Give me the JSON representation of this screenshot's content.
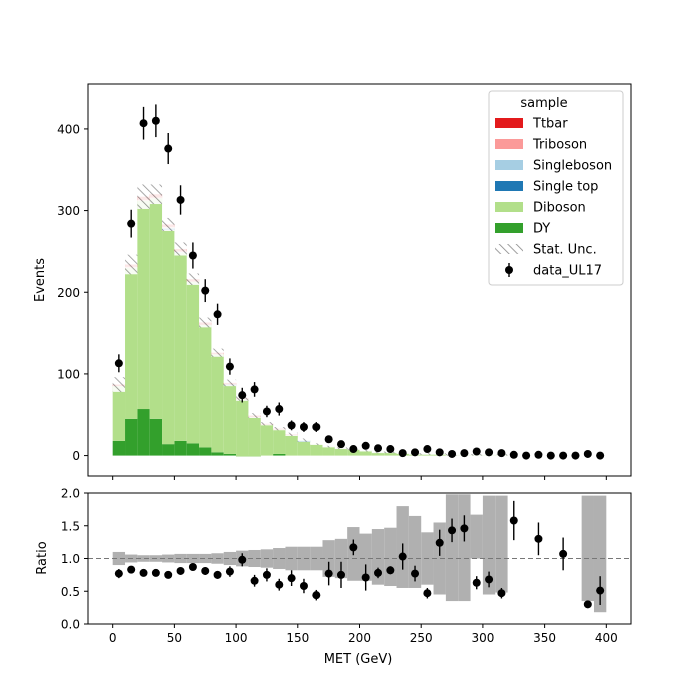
{
  "chart_data": [
    {
      "type": "bar",
      "subtype": "stacked-histogram",
      "ylabel": "Events",
      "xlim": [
        -20,
        420
      ],
      "ylim": [
        -25,
        455
      ],
      "yticks": [
        0,
        100,
        200,
        300,
        400
      ],
      "bin_edges": [
        0,
        10,
        20,
        30,
        40,
        50,
        60,
        70,
        80,
        90,
        100,
        110,
        120,
        130,
        140,
        150,
        160,
        170,
        180,
        190,
        200,
        210,
        220,
        230,
        240,
        250,
        260,
        270,
        280,
        290,
        300,
        310,
        320,
        330,
        340,
        350,
        360,
        370,
        380,
        390,
        400
      ],
      "series": [
        {
          "name": "DY",
          "color": "#33a02c",
          "values": [
            18,
            45,
            57,
            45,
            14,
            18,
            15,
            10,
            4,
            2,
            -1,
            -1,
            0,
            2,
            0,
            0,
            0,
            0,
            0,
            0,
            0,
            0,
            0,
            0,
            0,
            0,
            0,
            0,
            0,
            0,
            0,
            0,
            0,
            0,
            0,
            0,
            0,
            0,
            0,
            0
          ]
        },
        {
          "name": "Diboson",
          "color": "#b2df8a",
          "values": [
            67,
            185,
            255,
            270,
            262,
            230,
            198,
            150,
            120,
            84,
            70,
            48,
            38,
            30,
            25,
            17,
            14,
            11,
            9,
            8,
            6,
            4,
            4,
            3,
            2,
            2,
            2,
            1,
            1,
            1,
            1,
            1,
            0,
            0,
            0,
            0,
            0,
            0,
            0,
            0
          ]
        },
        {
          "name": "Single top",
          "color": "#1f78b4",
          "values": [
            0,
            0,
            0,
            0,
            2,
            0,
            0,
            0,
            0,
            1,
            0,
            0,
            0,
            0,
            0,
            1,
            0,
            0,
            0,
            0,
            0,
            0,
            0,
            0,
            0,
            0,
            0,
            0,
            0,
            0,
            0,
            0,
            0,
            0,
            0,
            0,
            0,
            0,
            0,
            0
          ]
        },
        {
          "name": "Singleboson",
          "color": "#a6cee3",
          "values": [
            0,
            0,
            0,
            0,
            1,
            1,
            0,
            0,
            0,
            0,
            0,
            0,
            0,
            0,
            0,
            1,
            0,
            0,
            0,
            0,
            0,
            0,
            0,
            0,
            0,
            0,
            0,
            0,
            0,
            0,
            0,
            0,
            0,
            0,
            0,
            0,
            0,
            0,
            0,
            0
          ]
        },
        {
          "name": "Triboson",
          "color": "#fb9a99",
          "values": [
            0,
            1,
            1,
            1,
            1,
            1,
            0,
            0,
            0,
            0,
            0,
            0,
            0,
            0,
            0,
            0,
            0,
            0,
            0,
            0,
            0,
            0,
            0,
            0,
            0,
            0,
            0,
            0,
            0,
            0,
            0,
            0,
            0,
            0,
            0,
            0,
            0,
            0,
            0,
            0
          ]
        },
        {
          "name": "Ttbar",
          "color": "#e31a1c",
          "values": [
            2,
            3,
            4,
            4,
            3,
            3,
            3,
            3,
            2,
            2,
            1,
            2,
            1,
            1,
            1,
            0,
            0,
            0,
            0,
            0,
            0,
            0,
            0,
            0,
            0,
            0,
            0,
            0,
            0,
            0,
            0,
            0,
            0,
            0,
            0,
            0,
            0,
            0,
            0,
            0
          ]
        }
      ],
      "stat_unc": [
        9,
        12,
        15,
        12,
        8,
        8,
        7,
        6,
        5,
        4,
        3,
        3,
        2,
        2,
        2,
        2,
        1,
        1,
        1,
        1,
        1,
        1,
        1,
        1,
        1,
        1,
        1,
        1,
        1,
        1,
        1,
        1,
        0,
        0,
        0,
        0,
        0,
        0,
        0,
        0
      ],
      "data": {
        "name": "data_UL17",
        "x": [
          5,
          15,
          25,
          35,
          45,
          55,
          65,
          75,
          85,
          95,
          105,
          115,
          125,
          135,
          145,
          155,
          165,
          175,
          185,
          195,
          205,
          215,
          225,
          235,
          245,
          255,
          265,
          275,
          285,
          295,
          305,
          315,
          325,
          335,
          345,
          355,
          365,
          375,
          385,
          395
        ],
        "y": [
          113,
          284,
          407,
          410,
          376,
          313,
          245,
          202,
          173,
          109,
          74,
          81,
          54,
          57,
          37,
          35,
          35,
          20,
          14,
          8,
          12,
          9,
          8,
          3,
          4,
          8,
          4,
          2,
          3,
          5,
          4,
          3,
          1,
          0,
          1,
          0,
          0,
          0,
          2,
          0
        ],
        "yerr": [
          11,
          17,
          20,
          20,
          19,
          18,
          16,
          14,
          13,
          10,
          9,
          9,
          7,
          8,
          6,
          6,
          6,
          4,
          4,
          3,
          3,
          3,
          3,
          2,
          2,
          3,
          2,
          1,
          2,
          2,
          2,
          2,
          1,
          1,
          1,
          1,
          1,
          1,
          1,
          1
        ]
      },
      "legend": {
        "title": "sample",
        "position": "top-right",
        "entries": [
          {
            "label": "Ttbar",
            "color": "#e31a1c",
            "kind": "patch"
          },
          {
            "label": "Triboson",
            "color": "#fb9a99",
            "kind": "patch"
          },
          {
            "label": "Singleboson",
            "color": "#a6cee3",
            "kind": "patch"
          },
          {
            "label": "Single top",
            "color": "#1f78b4",
            "kind": "patch"
          },
          {
            "label": "Diboson",
            "color": "#b2df8a",
            "kind": "patch"
          },
          {
            "label": "DY",
            "color": "#33a02c",
            "kind": "patch"
          },
          {
            "label": "Stat. Unc.",
            "color": "#888888",
            "kind": "hatch"
          },
          {
            "label": "data_UL17",
            "color": "#000000",
            "kind": "errorbar"
          }
        ]
      }
    },
    {
      "type": "scatter",
      "subtype": "ratio",
      "xlabel": "MET (GeV)",
      "ylabel": "Ratio",
      "xlim": [
        -20,
        420
      ],
      "ylim": [
        0,
        2
      ],
      "xticks": [
        0,
        50,
        100,
        150,
        200,
        250,
        300,
        350,
        400
      ],
      "yticks": [
        0.0,
        0.5,
        1.0,
        1.5,
        2.0
      ],
      "reference_line": 1.0,
      "unc_band": {
        "lo": [
          0.9,
          0.94,
          0.95,
          0.95,
          0.94,
          0.93,
          0.93,
          0.93,
          0.92,
          0.9,
          0.88,
          0.87,
          0.86,
          0.84,
          0.82,
          0.82,
          0.82,
          0.72,
          0.7,
          0.66,
          0.66,
          0.6,
          0.58,
          0.55,
          0.55,
          0.6,
          0.45,
          0.35,
          0.35,
          1.0,
          0.45,
          0.48,
          1.0,
          1.0,
          1.0,
          1.0,
          1.0,
          1.0,
          0.35,
          0.18
        ],
        "hi": [
          1.1,
          1.06,
          1.05,
          1.05,
          1.06,
          1.07,
          1.07,
          1.07,
          1.08,
          1.1,
          1.12,
          1.13,
          1.14,
          1.16,
          1.18,
          1.18,
          1.18,
          1.28,
          1.3,
          1.48,
          1.38,
          1.45,
          1.47,
          1.8,
          1.65,
          1.4,
          1.55,
          1.98,
          1.98,
          1.67,
          1.96,
          1.96,
          1.0,
          1.0,
          1.0,
          1.0,
          1.0,
          1.0,
          1.96,
          1.96
        ]
      },
      "x": [
        5,
        15,
        25,
        35,
        45,
        55,
        65,
        75,
        85,
        95,
        105,
        115,
        125,
        135,
        145,
        155,
        165,
        175,
        185,
        195,
        205,
        215,
        225,
        235,
        245,
        255,
        265,
        275,
        285,
        295,
        305,
        315,
        325,
        345,
        365,
        385,
        395
      ],
      "y": [
        0.77,
        0.83,
        0.78,
        0.78,
        0.75,
        0.81,
        0.87,
        0.81,
        0.75,
        0.8,
        0.98,
        0.66,
        0.75,
        0.6,
        0.7,
        0.58,
        0.44,
        0.77,
        0.75,
        1.17,
        0.71,
        0.78,
        0.82,
        1.03,
        0.77,
        0.47,
        1.24,
        1.43,
        1.46,
        0.63,
        0.68,
        0.47,
        1.58,
        1.3,
        1.07,
        0.3,
        0.51
      ],
      "yerr": [
        0.07,
        0.05,
        0.04,
        0.04,
        0.04,
        0.05,
        0.05,
        0.06,
        0.06,
        0.08,
        0.1,
        0.09,
        0.1,
        0.09,
        0.12,
        0.11,
        0.08,
        0.18,
        0.2,
        0.12,
        0.2,
        0.08,
        0.06,
        0.2,
        0.12,
        0.08,
        0.2,
        0.18,
        0.2,
        0.1,
        0.12,
        0.08,
        0.3,
        0.25,
        0.25,
        0.05,
        0.22
      ]
    }
  ]
}
